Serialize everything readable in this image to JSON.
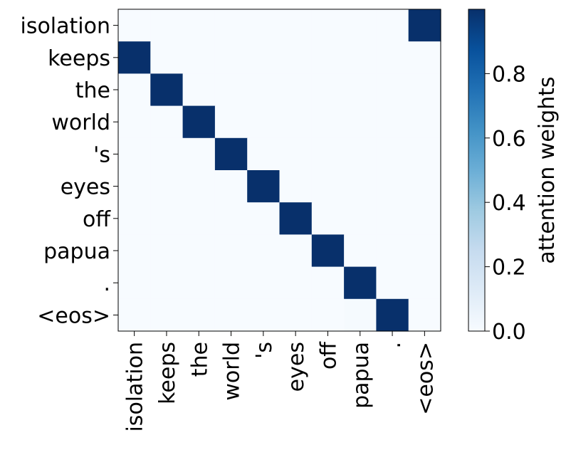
{
  "chart_data": {
    "type": "heatmap",
    "x_labels": [
      "isolation",
      "keeps",
      "the",
      "world",
      "'s",
      "eyes",
      "off",
      "papua",
      ".",
      "<eos>"
    ],
    "y_labels": [
      "isolation",
      "keeps",
      "the",
      "world",
      "'s",
      "eyes",
      "off",
      "papua",
      ".",
      "<eos>"
    ],
    "values": [
      [
        0.0,
        0.0,
        0.0,
        0.0,
        0.0,
        0.0,
        0.0,
        0.0,
        0.0,
        1.0
      ],
      [
        1.0,
        0.0,
        0.0,
        0.0,
        0.0,
        0.0,
        0.0,
        0.0,
        0.0,
        0.0
      ],
      [
        0.0,
        1.0,
        0.0,
        0.0,
        0.0,
        0.0,
        0.0,
        0.0,
        0.0,
        0.0
      ],
      [
        0.0,
        0.0,
        1.0,
        0.0,
        0.0,
        0.0,
        0.0,
        0.0,
        0.0,
        0.0
      ],
      [
        0.0,
        0.0,
        0.0,
        1.0,
        0.0,
        0.0,
        0.0,
        0.0,
        0.0,
        0.0
      ],
      [
        0.0,
        0.0,
        0.0,
        0.0,
        1.0,
        0.0,
        0.0,
        0.0,
        0.0,
        0.0
      ],
      [
        0.0,
        0.0,
        0.0,
        0.0,
        0.0,
        1.0,
        0.0,
        0.0,
        0.0,
        0.0
      ],
      [
        0.0,
        0.0,
        0.0,
        0.0,
        0.0,
        0.0,
        1.0,
        0.0,
        0.0,
        0.0
      ],
      [
        0.0,
        0.0,
        0.0,
        0.0,
        0.0,
        0.0,
        0.0,
        1.0,
        0.0,
        0.0
      ],
      [
        0.0,
        0.0,
        0.0,
        0.0,
        0.0,
        0.0,
        0.0,
        0.01,
        1.0,
        0.0
      ]
    ],
    "colormap": "Blues",
    "colorbar": {
      "label": "attention weights",
      "ticks": [
        "0.0",
        "0.2",
        "0.4",
        "0.6",
        "0.8"
      ],
      "tick_values": [
        0.0,
        0.2,
        0.4,
        0.6,
        0.8
      ],
      "range": [
        0.0,
        1.0
      ]
    },
    "grid": false
  }
}
